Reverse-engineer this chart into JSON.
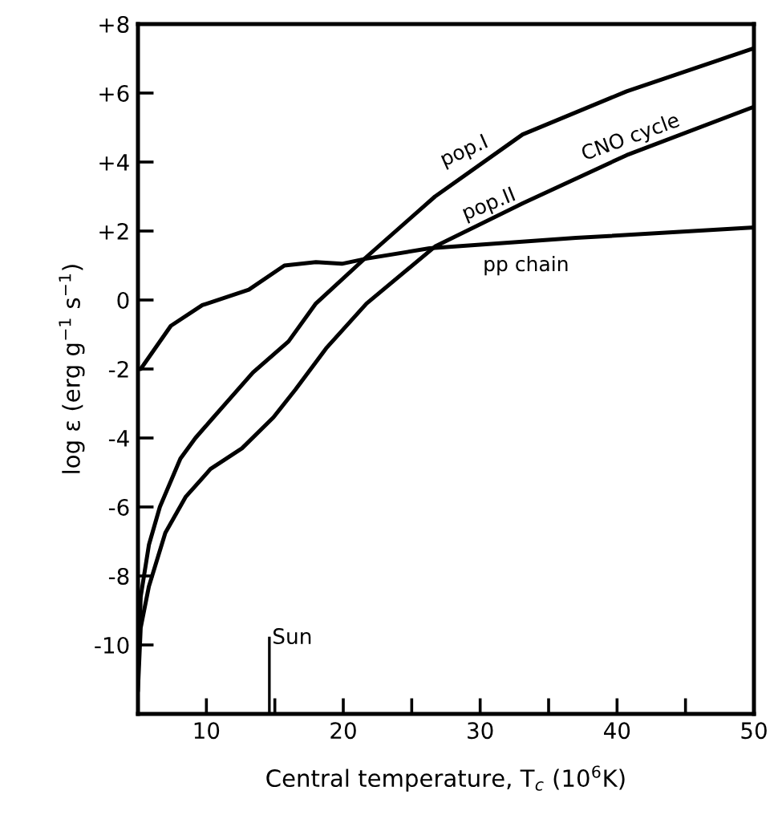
{
  "chart_data": {
    "type": "line",
    "xlabel": "Central temperature, T$_{c}$ (10$^{6}$K)",
    "ylabel": "log ε (erg g$^{−1}$ s$^{−1}$)",
    "xlim": [
      5,
      50
    ],
    "ylim": [
      -12,
      8
    ],
    "xticks": [
      10,
      {
        "value": 15,
        "label": null
      },
      20,
      {
        "value": 25,
        "label": null
      },
      30,
      {
        "value": 35,
        "label": null
      },
      40,
      {
        "value": 45,
        "label": null
      },
      50
    ],
    "yticks": [
      {
        "value": 8,
        "label": "+8"
      },
      {
        "value": 6,
        "label": "+6"
      },
      {
        "value": 4,
        "label": "+4"
      },
      {
        "value": 2,
        "label": "+2"
      },
      0,
      {
        "value": -2,
        "label": "-2"
      },
      {
        "value": -4,
        "label": "-4"
      },
      {
        "value": -6,
        "label": "-6"
      },
      {
        "value": -8,
        "label": "-8"
      },
      {
        "value": -10,
        "label": "-10"
      }
    ],
    "grid": false,
    "legend": false,
    "marker": "none",
    "line_style": "solid",
    "series": [
      {
        "name": "pp chain",
        "color": "#000000",
        "x": [
          5,
          5.2,
          7.4,
          9.7,
          13.1,
          15.7,
          18,
          19.9,
          21.7,
          26.3,
          37,
          49.8,
          50
        ],
        "values": [
          -2,
          -2,
          -0.75,
          -0.15,
          0.3,
          1.0,
          1.1,
          1.05,
          1.2,
          1.5,
          1.8,
          2.1,
          2.1
        ]
      },
      {
        "name": "pop.I",
        "color": "#000000",
        "x": [
          5,
          5.2,
          5.8,
          6.6,
          8.1,
          9.2,
          10.3,
          13.4,
          16,
          18,
          21.7,
          26.7,
          33.1,
          40.7,
          50
        ],
        "values": [
          -11,
          -8.6,
          -7.1,
          -6,
          -4.6,
          -4.0,
          -3.5,
          -2.1,
          -1.2,
          -0.1,
          1.25,
          3.0,
          4.8,
          6.05,
          7.3
        ]
      },
      {
        "name": "pop.II",
        "color": "#000000",
        "x": [
          5,
          5.2,
          5.8,
          7,
          8.5,
          10.3,
          12.6,
          14.9,
          16.5,
          18.75,
          21.7,
          26.7,
          33.1,
          40.7,
          50
        ],
        "values": [
          -11.3,
          -9.5,
          -8.3,
          -6.75,
          -5.7,
          -4.9,
          -4.3,
          -3.4,
          -2.6,
          -1.4,
          -0.1,
          1.55,
          2.8,
          4.2,
          5.6
        ]
      }
    ],
    "ref_lines": [
      {
        "axis": "x",
        "value": 14.6,
        "label": "Sun",
        "color": "#000000",
        "line_style": "solid"
      }
    ],
    "annotations": [
      "CNO cycle"
    ]
  }
}
